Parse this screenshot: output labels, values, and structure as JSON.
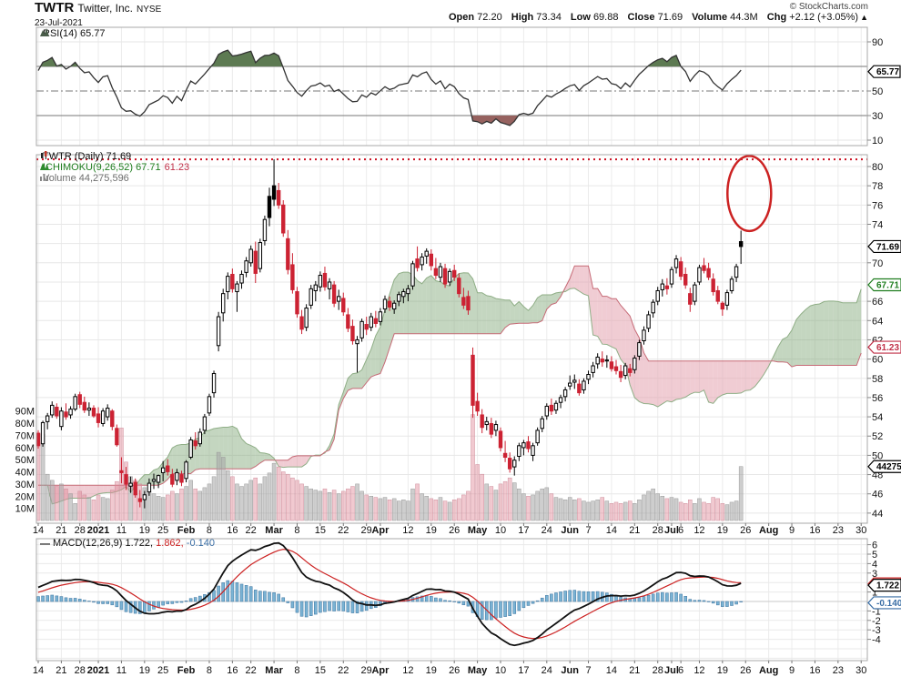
{
  "header": {
    "symbol": "TWTR",
    "company": "Twitter, Inc.",
    "exchange": "NYSE",
    "date": "23-Jul-2021",
    "copyright": "© StockCharts.com",
    "quote": {
      "open_label": "Open",
      "open": "72.20",
      "high_label": "High",
      "high": "73.34",
      "low_label": "Low",
      "low": "69.88",
      "close_label": "Close",
      "close": "71.69",
      "volume_label": "Volume",
      "volume": "44.3M",
      "chg_label": "Chg",
      "chg": "+2.12 (+3.05%)",
      "chg_arrow": "▲"
    }
  },
  "rsi_panel": {
    "legend": "RSI(14) 65.77",
    "flag": "65.77",
    "axis_labels": [
      90,
      50,
      30,
      10
    ],
    "overbought": 70,
    "oversold": 30,
    "midline": 50,
    "last_value": 65.77
  },
  "price_panel": {
    "legend_line1": "TWTR (Daily) 71.69",
    "ichimoku_label": "ICHIMOKU(9,26,52)",
    "ichimoku_a": "67.71",
    "ichimoku_b": "61.23",
    "volume_legend": "Volume 44,275,596",
    "close_flag": "71.69",
    "ichimoku_a_flag": "67.71",
    "ichimoku_b_flag": "61.23",
    "volume_flag": "44275",
    "axis_labels": [
      80,
      78,
      76,
      74,
      70,
      66,
      64,
      62,
      60,
      58,
      56,
      54,
      52,
      50,
      48,
      46,
      44
    ],
    "volume_axis_labels": [
      "90M",
      "80M",
      "70M",
      "60M",
      "50M",
      "40M",
      "30M",
      "20M",
      "10M"
    ]
  },
  "macd_panel": {
    "legend_label": "MACD(12,26,9)",
    "v_macd": "1.722,",
    "v_signal": "1.862,",
    "v_hist": "-0.140",
    "flag_macd": "1.722",
    "flag_signal": 1.862,
    "flag_hist": "-0.140",
    "axis_labels": [
      6,
      5,
      4,
      3,
      1,
      -1,
      -2,
      -3,
      -4
    ]
  },
  "chart_data": {
    "type": "candlestick",
    "symbol": "TWTR",
    "period": "Daily",
    "start_date": "2020-12-14",
    "end_date": "2021-07-23",
    "price_axis": {
      "min": 44,
      "max": 80,
      "step": 2
    },
    "key_levels": {
      "dotted_resistance": 80.75
    },
    "last_values": {
      "close": 71.69,
      "rsi": 65.77,
      "ichimoku_span_a": 67.71,
      "ichimoku_span_b": 61.23,
      "volume": 44275596,
      "macd": 1.722,
      "macd_signal": 1.862,
      "macd_hist": -0.14
    },
    "indicators": {
      "rsi_period": 14,
      "macd": [
        12,
        26,
        9
      ],
      "ichimoku": [
        9,
        26,
        52
      ],
      "ichimoku_displacement": 26
    },
    "annotation_ellipse": {
      "day_index": 153.8,
      "price_center": 77.2,
      "price_half_range": 3.9
    },
    "x_max_day": 178,
    "x_ticks": [
      {
        "label": "14",
        "i": 0
      },
      {
        "label": "21",
        "i": 5
      },
      {
        "label": "28",
        "i": 9
      },
      {
        "label": "2021",
        "i": 13,
        "bold": true
      },
      {
        "label": "11",
        "i": 18
      },
      {
        "label": "19",
        "i": 23
      },
      {
        "label": "25",
        "i": 27
      },
      {
        "label": "Feb",
        "i": 32,
        "bold": true
      },
      {
        "label": "8",
        "i": 37
      },
      {
        "label": "16",
        "i": 42
      },
      {
        "label": "22",
        "i": 46
      },
      {
        "label": "Mar",
        "i": 51,
        "bold": true
      },
      {
        "label": "8",
        "i": 56
      },
      {
        "label": "15",
        "i": 61
      },
      {
        "label": "22",
        "i": 66
      },
      {
        "label": "29",
        "i": 71
      },
      {
        "label": "Apr",
        "i": 74,
        "bold": true
      },
      {
        "label": "12",
        "i": 80
      },
      {
        "label": "19",
        "i": 85
      },
      {
        "label": "26",
        "i": 90
      },
      {
        "label": "May",
        "i": 95,
        "bold": true
      },
      {
        "label": "10",
        "i": 100
      },
      {
        "label": "17",
        "i": 105
      },
      {
        "label": "24",
        "i": 110
      },
      {
        "label": "Jun",
        "i": 115,
        "bold": true
      },
      {
        "label": "7",
        "i": 119
      },
      {
        "label": "14",
        "i": 124
      },
      {
        "label": "21",
        "i": 129
      },
      {
        "label": "28",
        "i": 134
      },
      {
        "label": "Jul",
        "i": 137,
        "bold": true
      },
      {
        "label": "6",
        "i": 139
      },
      {
        "label": "12",
        "i": 143
      },
      {
        "label": "19",
        "i": 148
      },
      {
        "label": "26",
        "i": 153
      },
      {
        "label": "Aug",
        "i": 158,
        "bold": true
      },
      {
        "label": "9",
        "i": 163
      },
      {
        "label": "16",
        "i": 168
      },
      {
        "label": "23",
        "i": 173
      },
      {
        "label": "30",
        "i": 178
      }
    ],
    "pre_closes": [
      44.5,
      44.7,
      44.9,
      44.2,
      45.0,
      45.8,
      46.3,
      46.0,
      46.8,
      47.2,
      48.9,
      49.4,
      49.0,
      48.3,
      48.8,
      48.5,
      48.9,
      51.4,
      52.1,
      51.0,
      50.1,
      48.9,
      49.2,
      52.4,
      41.4,
      41.9,
      42.6,
      43.9,
      43.2,
      43.8,
      44.6,
      43.8,
      43.2,
      43.9,
      44.3,
      44.7,
      45.2,
      44.6,
      44.3,
      44.1,
      44.9,
      45.4,
      46.1,
      46.4,
      46.6,
      46.4,
      47.1,
      47.8,
      48.3,
      48.9,
      49.6,
      50.5,
      51.2,
      50.8,
      51.8
    ],
    "candles": [
      [
        52.3,
        52.6,
        50.7,
        51.0
      ],
      [
        51.2,
        53.6,
        50.9,
        53.4
      ],
      [
        53.5,
        54.4,
        52.7,
        54.1
      ],
      [
        54.2,
        55.6,
        53.9,
        55.2
      ],
      [
        55.0,
        55.4,
        53.8,
        54.1
      ],
      [
        53.0,
        55.0,
        52.6,
        54.6
      ],
      [
        54.5,
        55.4,
        53.7,
        54.0
      ],
      [
        54.2,
        55.1,
        53.8,
        54.8
      ],
      [
        54.8,
        56.4,
        54.6,
        56.1
      ],
      [
        56.3,
        56.6,
        54.9,
        55.3
      ],
      [
        55.5,
        56.1,
        54.4,
        54.7
      ],
      [
        54.7,
        55.5,
        54.1,
        54.9
      ],
      [
        54.9,
        55.2,
        53.9,
        54.1
      ],
      [
        54.3,
        55.0,
        52.9,
        53.4
      ],
      [
        53.3,
        54.9,
        53.0,
        54.6
      ],
      [
        54.0,
        55.3,
        53.6,
        54.9
      ],
      [
        54.6,
        54.8,
        52.6,
        53.0
      ],
      [
        52.8,
        53.2,
        50.9,
        51.1
      ],
      [
        48.4,
        49.8,
        47.1,
        48.2
      ],
      [
        48.0,
        48.8,
        46.4,
        47.0
      ],
      [
        46.8,
        47.8,
        46.1,
        47.1
      ],
      [
        47.2,
        47.6,
        45.6,
        45.9
      ],
      [
        45.5,
        46.4,
        44.6,
        45.2
      ],
      [
        45.4,
        46.3,
        44.5,
        45.9
      ],
      [
        46.2,
        47.6,
        45.8,
        47.1
      ],
      [
        47.3,
        48.1,
        46.5,
        47.5
      ],
      [
        47.2,
        48.0,
        46.6,
        47.9
      ],
      [
        48.2,
        49.4,
        47.3,
        48.7
      ],
      [
        48.9,
        49.6,
        47.9,
        48.3
      ],
      [
        48.0,
        48.6,
        46.7,
        47.0
      ],
      [
        47.4,
        48.6,
        46.9,
        48.2
      ],
      [
        48.0,
        48.4,
        46.8,
        47.2
      ],
      [
        47.6,
        49.5,
        47.2,
        49.3
      ],
      [
        49.8,
        51.9,
        49.6,
        51.6
      ],
      [
        51.5,
        52.4,
        50.6,
        51.0
      ],
      [
        51.2,
        52.8,
        50.9,
        52.4
      ],
      [
        52.6,
        54.3,
        52.2,
        54.0
      ],
      [
        54.4,
        56.4,
        54.1,
        56.1
      ],
      [
        56.5,
        58.8,
        56.0,
        58.5
      ],
      [
        61.4,
        64.9,
        60.8,
        64.4
      ],
      [
        64.8,
        67.3,
        63.9,
        66.8
      ],
      [
        67.0,
        69.0,
        66.2,
        68.6
      ],
      [
        68.8,
        69.4,
        66.9,
        67.3
      ],
      [
        67.0,
        68.1,
        64.9,
        67.8
      ],
      [
        67.9,
        69.2,
        67.3,
        68.8
      ],
      [
        69.0,
        70.6,
        68.5,
        70.2
      ],
      [
        70.0,
        71.8,
        69.6,
        71.4
      ],
      [
        71.2,
        72.2,
        67.9,
        68.9
      ],
      [
        69.4,
        72.5,
        69.0,
        72.1
      ],
      [
        72.3,
        74.9,
        71.8,
        74.5
      ],
      [
        76.9,
        77.8,
        73.8,
        74.7
      ],
      [
        78.0,
        80.75,
        75.9,
        76.6
      ],
      [
        77.5,
        78.3,
        75.6,
        76.0
      ],
      [
        76.0,
        76.5,
        72.7,
        73.1
      ],
      [
        72.5,
        73.4,
        68.8,
        69.3
      ],
      [
        69.8,
        71.0,
        66.8,
        67.2
      ],
      [
        67.0,
        67.5,
        64.3,
        64.7
      ],
      [
        64.4,
        65.1,
        62.6,
        63.1
      ],
      [
        63.3,
        65.7,
        62.9,
        65.3
      ],
      [
        65.6,
        67.7,
        65.2,
        67.3
      ],
      [
        67.1,
        68.1,
        66.0,
        67.7
      ],
      [
        67.5,
        69.1,
        67.0,
        68.7
      ],
      [
        68.9,
        69.6,
        67.1,
        67.5
      ],
      [
        67.3,
        68.4,
        66.2,
        68.0
      ],
      [
        67.7,
        68.1,
        65.4,
        65.8
      ],
      [
        66.0,
        67.2,
        65.1,
        66.5
      ],
      [
        66.3,
        66.9,
        64.5,
        64.9
      ],
      [
        64.6,
        65.3,
        62.8,
        63.2
      ],
      [
        63.4,
        64.1,
        61.5,
        61.9
      ],
      [
        61.6,
        62.4,
        58.6,
        62.0
      ],
      [
        62.2,
        64.2,
        61.8,
        63.9
      ],
      [
        63.6,
        64.4,
        62.5,
        63.1
      ],
      [
        63.3,
        64.8,
        62.9,
        64.4
      ],
      [
        64.2,
        65.0,
        63.3,
        63.7
      ],
      [
        63.9,
        65.3,
        63.5,
        64.9
      ],
      [
        65.2,
        66.6,
        64.8,
        66.2
      ],
      [
        66.0,
        66.5,
        65.0,
        65.4
      ],
      [
        65.2,
        66.1,
        64.7,
        65.8
      ],
      [
        66.0,
        67.0,
        65.5,
        66.7
      ],
      [
        66.5,
        67.3,
        65.8,
        67.0
      ],
      [
        66.8,
        67.7,
        66.0,
        67.3
      ],
      [
        67.6,
        70.2,
        67.2,
        69.9
      ],
      [
        70.4,
        71.7,
        69.1,
        69.5
      ],
      [
        69.8,
        71.0,
        69.2,
        70.6
      ],
      [
        70.7,
        71.5,
        69.9,
        71.2
      ],
      [
        70.9,
        71.4,
        69.2,
        69.7
      ],
      [
        69.4,
        70.5,
        68.3,
        68.7
      ],
      [
        68.5,
        70.0,
        68.0,
        69.6
      ],
      [
        69.4,
        69.9,
        67.4,
        67.8
      ],
      [
        68.0,
        69.4,
        67.6,
        69.1
      ],
      [
        69.2,
        69.8,
        68.1,
        68.5
      ],
      [
        68.4,
        68.9,
        66.4,
        66.8
      ],
      [
        66.4,
        67.4,
        65.2,
        65.6
      ],
      [
        66.5,
        67.1,
        64.6,
        65.1
      ],
      [
        60.4,
        61.2,
        53.9,
        55.2
      ],
      [
        55.6,
        56.5,
        54.1,
        54.6
      ],
      [
        54.2,
        54.8,
        52.3,
        52.9
      ],
      [
        53.2,
        54.0,
        52.6,
        53.5
      ],
      [
        53.3,
        53.9,
        51.8,
        52.2
      ],
      [
        52.6,
        53.6,
        52.0,
        53.2
      ],
      [
        52.5,
        52.9,
        50.4,
        50.8
      ],
      [
        50.2,
        51.5,
        49.3,
        49.8
      ],
      [
        49.7,
        50.3,
        48.2,
        48.6
      ],
      [
        48.8,
        49.9,
        47.9,
        49.5
      ],
      [
        49.9,
        51.3,
        49.4,
        51.0
      ],
      [
        50.8,
        51.6,
        50.0,
        51.3
      ],
      [
        51.4,
        52.0,
        50.3,
        50.7
      ],
      [
        50.0,
        51.3,
        49.4,
        51.0
      ],
      [
        51.3,
        52.9,
        51.0,
        52.6
      ],
      [
        52.8,
        54.1,
        52.4,
        53.8
      ],
      [
        54.1,
        55.4,
        53.7,
        55.1
      ],
      [
        55.2,
        55.9,
        54.2,
        54.6
      ],
      [
        54.7,
        55.7,
        54.3,
        55.4
      ],
      [
        55.5,
        56.3,
        54.9,
        56.0
      ],
      [
        56.1,
        57.1,
        55.6,
        56.8
      ],
      [
        57.2,
        58.3,
        56.8,
        57.5
      ],
      [
        57.6,
        58.4,
        56.9,
        57.8
      ],
      [
        57.4,
        57.9,
        56.2,
        56.5
      ],
      [
        56.8,
        58.0,
        56.4,
        57.7
      ],
      [
        57.9,
        58.8,
        57.4,
        58.4
      ],
      [
        58.6,
        59.7,
        58.1,
        59.3
      ],
      [
        59.5,
        60.6,
        59.0,
        60.2
      ],
      [
        60.0,
        60.8,
        59.2,
        59.7
      ],
      [
        59.8,
        60.4,
        59.1,
        59.9
      ],
      [
        59.7,
        60.3,
        58.7,
        59.0
      ],
      [
        59.2,
        59.9,
        58.4,
        58.8
      ],
      [
        58.7,
        59.4,
        57.6,
        58.1
      ],
      [
        58.3,
        59.6,
        57.9,
        59.3
      ],
      [
        59.0,
        59.5,
        58.2,
        58.6
      ],
      [
        58.9,
        60.4,
        58.5,
        60.1
      ],
      [
        60.3,
        62.0,
        59.9,
        61.7
      ],
      [
        61.9,
        63.4,
        61.5,
        63.0
      ],
      [
        63.2,
        65.0,
        62.8,
        64.6
      ],
      [
        64.8,
        66.2,
        64.3,
        65.9
      ],
      [
        66.0,
        67.5,
        65.6,
        67.1
      ],
      [
        67.2,
        68.3,
        66.5,
        67.8
      ],
      [
        67.6,
        68.4,
        66.7,
        67.3
      ],
      [
        67.8,
        69.6,
        67.4,
        69.3
      ],
      [
        69.5,
        70.8,
        68.9,
        70.4
      ],
      [
        70.1,
        70.6,
        68.2,
        68.6
      ],
      [
        68.8,
        69.5,
        67.3,
        67.7
      ],
      [
        66.8,
        67.4,
        64.9,
        65.7
      ],
      [
        66.0,
        68.0,
        65.6,
        67.7
      ],
      [
        68.0,
        69.8,
        67.7,
        69.5
      ],
      [
        69.7,
        70.5,
        68.9,
        69.2
      ],
      [
        69.4,
        70.0,
        68.2,
        68.5
      ],
      [
        68.3,
        68.9,
        66.6,
        67.0
      ],
      [
        67.1,
        67.6,
        65.7,
        66.0
      ],
      [
        65.8,
        66.0,
        64.5,
        65.2
      ],
      [
        65.6,
        67.2,
        65.1,
        66.9
      ],
      [
        67.1,
        68.6,
        66.8,
        68.3
      ],
      [
        68.5,
        69.9,
        68.0,
        69.6
      ],
      [
        72.2,
        73.34,
        69.88,
        71.69
      ]
    ],
    "volumes_m": [
      64,
      71,
      38,
      33,
      28,
      30,
      26,
      22,
      14,
      24,
      21,
      19,
      17,
      21,
      19,
      18,
      25,
      32,
      76,
      48,
      36,
      33,
      30,
      27,
      24,
      22,
      20,
      19,
      21,
      24,
      22,
      26,
      28,
      33,
      26,
      24,
      27,
      30,
      36,
      56,
      52,
      41,
      36,
      30,
      28,
      30,
      33,
      35,
      30,
      36,
      39,
      47,
      44,
      40,
      38,
      35,
      33,
      30,
      28,
      26,
      25,
      24,
      26,
      23,
      25,
      22,
      24,
      26,
      28,
      30,
      24,
      21,
      20,
      19,
      18,
      19,
      17,
      18,
      16,
      17,
      16,
      26,
      30,
      22,
      20,
      18,
      17,
      19,
      16,
      15,
      17,
      18,
      21,
      24,
      87,
      46,
      38,
      30,
      28,
      25,
      30,
      32,
      35,
      31,
      26,
      22,
      20,
      21,
      24,
      26,
      27,
      22,
      19,
      18,
      17,
      19,
      17,
      18,
      16,
      15,
      16,
      17,
      19,
      16,
      14,
      15,
      14,
      15,
      16,
      14,
      17,
      21,
      24,
      26,
      22,
      20,
      18,
      19,
      18,
      15,
      14,
      17,
      14,
      18,
      15,
      14,
      19,
      18,
      14,
      13,
      15,
      16,
      44.3
    ]
  }
}
